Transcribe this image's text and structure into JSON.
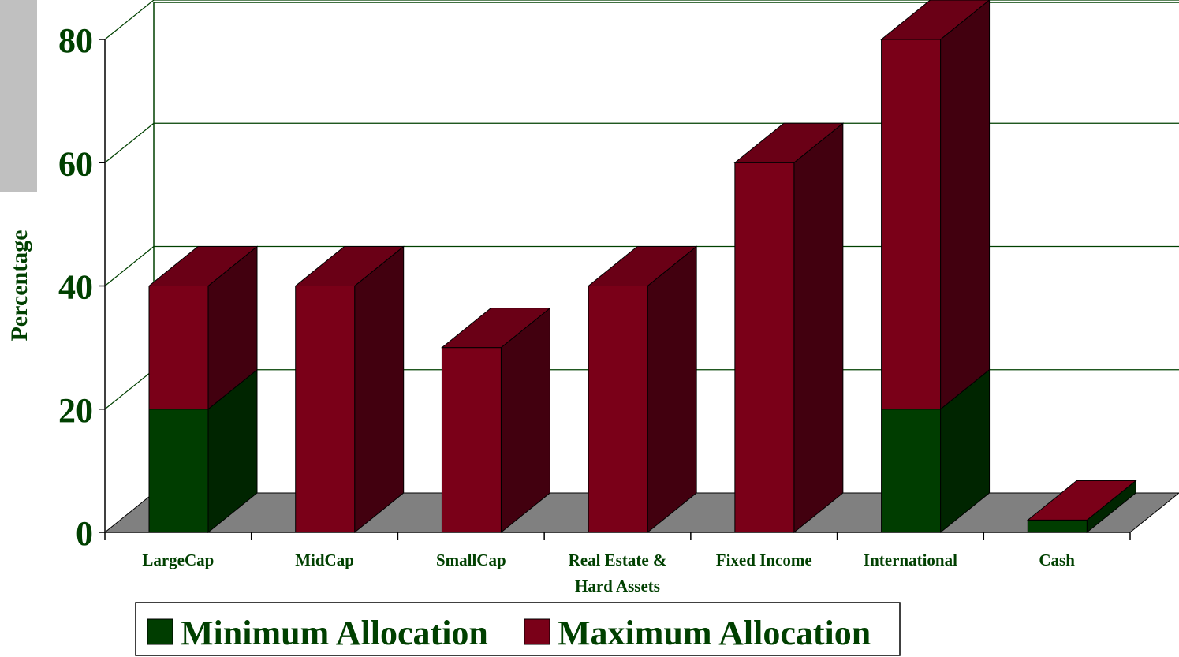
{
  "chart_data": {
    "type": "bar",
    "stacked": true,
    "three_d": true,
    "categories": [
      "LargeCap",
      "MidCap",
      "SmallCap",
      "Real Estate & Hard Assets",
      "Fixed Income",
      "International",
      "Cash"
    ],
    "category_lines": [
      [
        "LargeCap"
      ],
      [
        "MidCap"
      ],
      [
        "SmallCap"
      ],
      [
        "Real Estate &",
        "Hard Assets"
      ],
      [
        "Fixed Income"
      ],
      [
        "International"
      ],
      [
        "Cash"
      ]
    ],
    "series": [
      {
        "name": "Minimum Allocation",
        "values": [
          20,
          0,
          0,
          0,
          0,
          20,
          2
        ],
        "color": "#003d00"
      },
      {
        "name": "Maximum Allocation",
        "values": [
          20,
          40,
          30,
          40,
          60,
          60,
          0
        ],
        "color": "#7a0018"
      }
    ],
    "totals": [
      40,
      40,
      30,
      40,
      60,
      80,
      2
    ],
    "ylabel": "Percentage",
    "xlabel": "",
    "ylim": [
      0,
      80
    ],
    "yticks": [
      0,
      20,
      40,
      60,
      80
    ],
    "grid": true,
    "legend": "bottom",
    "colors": {
      "text": "#004000",
      "grid": "#004000",
      "floor": "#808080",
      "min_front": "#003d00",
      "min_side": "#002500",
      "max_front": "#7a0018",
      "max_side": "#42000f",
      "max_top": "#6a0016"
    }
  }
}
